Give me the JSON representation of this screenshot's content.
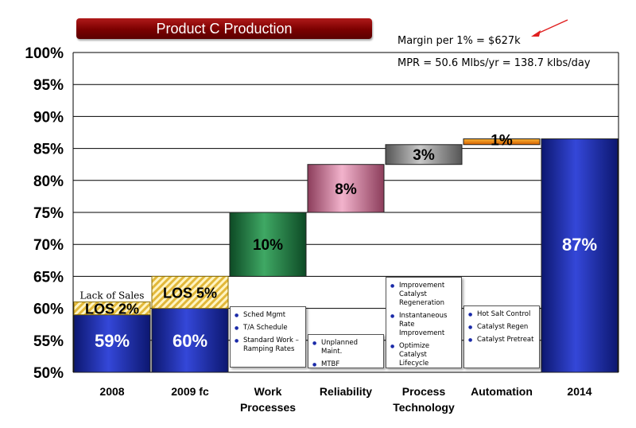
{
  "title": "Product C Production",
  "annotations": {
    "margin": "Margin per 1% = $627k",
    "mpr": "MPR = 50.6 Mlbs/yr = 138.7 klbs/day",
    "lack_of_sales": "Lack of Sales"
  },
  "chart_data": {
    "type": "bar",
    "subtype": "waterfall",
    "ylim": [
      50,
      100
    ],
    "y_ticks": [
      "50%",
      "55%",
      "60%",
      "65%",
      "70%",
      "75%",
      "80%",
      "85%",
      "90%",
      "95%",
      "100%"
    ],
    "grid": true,
    "categories": [
      "2008",
      "2009 fc",
      "Work Processes",
      "Reliability",
      "Process Technology",
      "Automation",
      "2014"
    ],
    "bars": [
      {
        "category": "2008",
        "base": 50,
        "top": 59,
        "label": "59%",
        "kind": "total",
        "color": "#1f2fa8"
      },
      {
        "category": "2008",
        "base": 59,
        "top": 61,
        "label": "LOS 2%",
        "kind": "los",
        "color": "#e8c94a"
      },
      {
        "category": "2009 fc",
        "base": 50,
        "top": 60,
        "label": "60%",
        "kind": "total",
        "color": "#1f2fa8"
      },
      {
        "category": "2009 fc",
        "base": 60,
        "top": 65,
        "label": "LOS 5%",
        "kind": "los",
        "color": "#e8c94a"
      },
      {
        "category": "Work Processes",
        "base": 65,
        "top": 75,
        "label": "10%",
        "kind": "step",
        "color": "#1f7a3f"
      },
      {
        "category": "Reliability",
        "base": 75,
        "top": 82.5,
        "label": "8%",
        "kind": "step",
        "color": "#d882a2"
      },
      {
        "category": "Process Technology",
        "base": 82.5,
        "top": 85.6,
        "label": "3%",
        "kind": "step",
        "color": "#8a8a8a"
      },
      {
        "category": "Automation",
        "base": 85.6,
        "top": 86.5,
        "label": "1%",
        "kind": "step",
        "color": "#f08a1a"
      },
      {
        "category": "2014",
        "base": 50,
        "top": 86.5,
        "label": "87%",
        "kind": "total",
        "color": "#1f2fa8"
      }
    ],
    "initiatives": [
      {
        "category": "Work Processes",
        "items": [
          "Sched Mgmt",
          "T/A Schedule",
          "Standard Work – Ramping Rates"
        ]
      },
      {
        "category": "Reliability",
        "items": [
          "Unplanned Maint.",
          "MTBF"
        ]
      },
      {
        "category": "Process Technology",
        "items": [
          "Improvement Catalyst Regeneration",
          "Instantaneous Rate Improvement",
          "Optimize Catalyst Lifecycle"
        ]
      },
      {
        "category": "Automation",
        "items": [
          "Hot Salt Control",
          "Catalyst Regen",
          "Catalyst Pretreat"
        ]
      }
    ]
  }
}
